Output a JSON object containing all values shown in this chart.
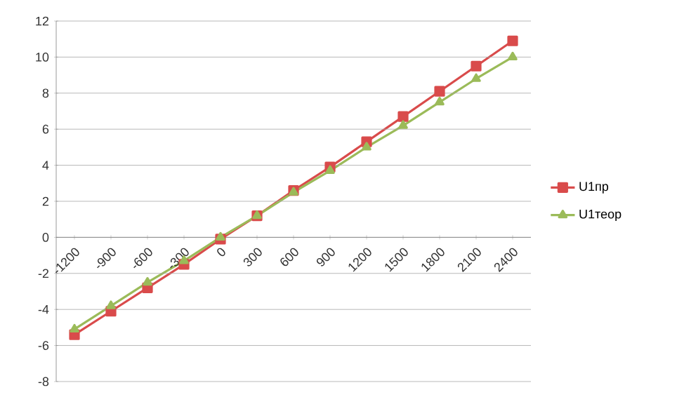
{
  "chart_data": {
    "type": "line",
    "categories": [
      "-1200",
      "-900",
      "-600",
      "-300",
      "0",
      "300",
      "600",
      "900",
      "1200",
      "1500",
      "1800",
      "2100",
      "2400"
    ],
    "series": [
      {
        "name": "U1пр",
        "color": "#d94b4b",
        "marker": "square",
        "values": [
          -5.4,
          -4.1,
          -2.8,
          -1.5,
          -0.1,
          1.2,
          2.6,
          3.9,
          5.3,
          6.7,
          8.1,
          9.5,
          10.9
        ]
      },
      {
        "name": "U1теор",
        "color": "#9bbb59",
        "marker": "triangle",
        "values": [
          -5.1,
          -3.8,
          -2.5,
          -1.3,
          0,
          1.2,
          2.5,
          3.7,
          5.0,
          6.2,
          7.5,
          8.8,
          10.0
        ]
      }
    ],
    "ylim": [
      -8,
      12
    ],
    "yticks": [
      -8,
      -6,
      -4,
      -2,
      0,
      2,
      4,
      6,
      8,
      10,
      12
    ],
    "grid": "y",
    "legend": "right",
    "line_style": "solid"
  }
}
